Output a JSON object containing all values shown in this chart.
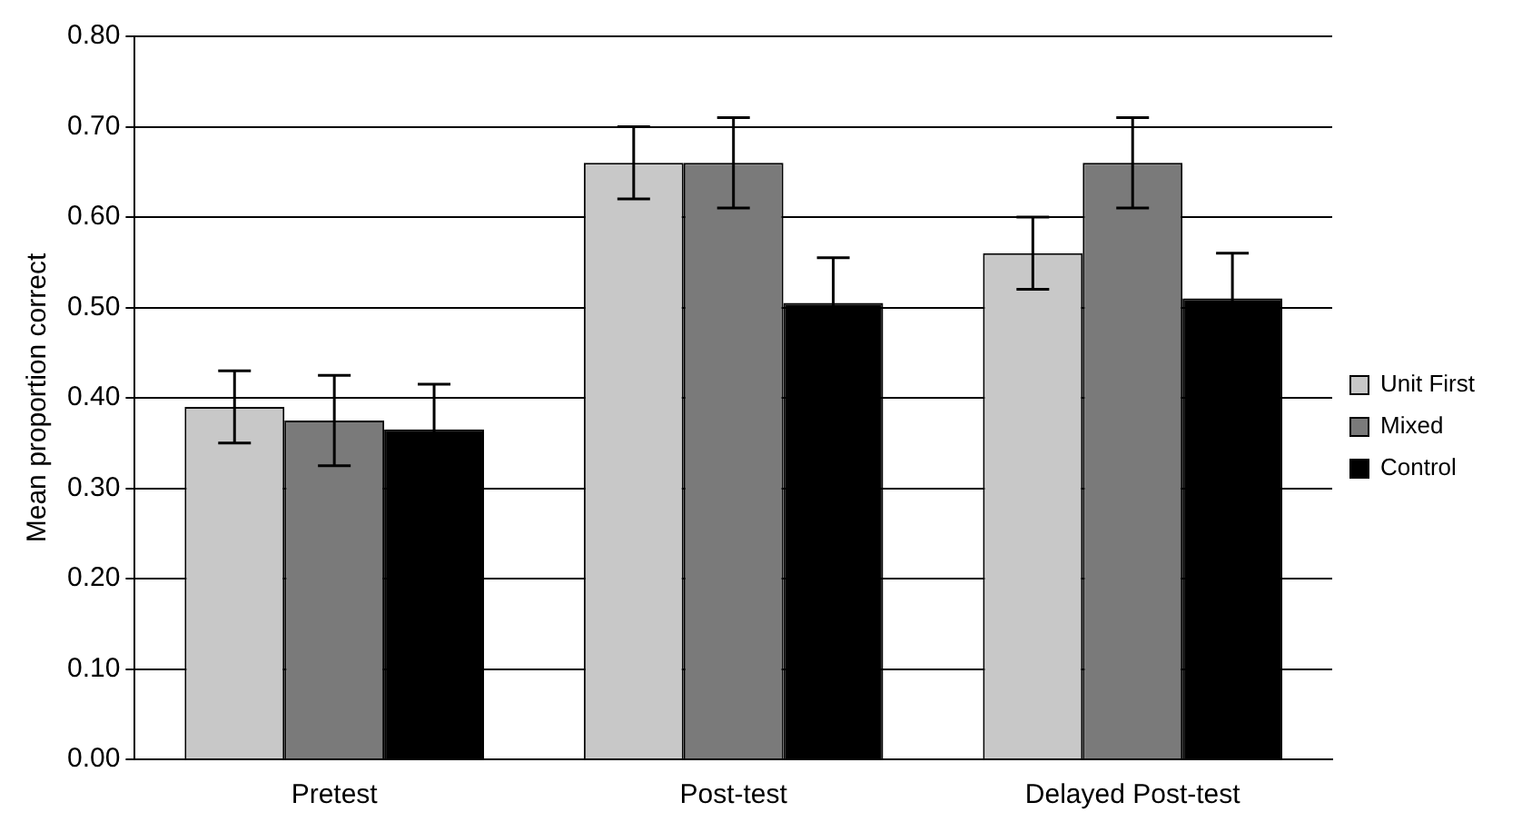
{
  "chart_data": {
    "type": "bar",
    "ylabel": "Mean proportion correct",
    "categories": [
      "Pretest",
      "Post-test",
      "Delayed Post-test"
    ],
    "series": [
      {
        "name": "Unit First",
        "color": "#c8c8c8",
        "values": [
          0.39,
          0.66,
          0.56
        ],
        "errors": [
          0.04,
          0.04,
          0.04
        ]
      },
      {
        "name": "Mixed",
        "color": "#7a7a7a",
        "values": [
          0.375,
          0.66,
          0.66
        ],
        "errors": [
          0.05,
          0.05,
          0.05
        ]
      },
      {
        "name": "Control",
        "color": "#000000",
        "values": [
          0.365,
          0.505,
          0.51
        ],
        "errors": [
          0.05,
          0.05,
          0.05
        ]
      }
    ],
    "ylim": [
      0,
      0.8
    ],
    "yticks": [
      {
        "value": 0,
        "label": "0.00"
      },
      {
        "value": 0.1,
        "label": "0.10"
      },
      {
        "value": 0.2,
        "label": "0.20"
      },
      {
        "value": 0.3,
        "label": "0.30"
      },
      {
        "value": 0.4,
        "label": "0.40"
      },
      {
        "value": 0.5,
        "label": "0.50"
      },
      {
        "value": 0.6,
        "label": "0.60"
      },
      {
        "value": 0.7,
        "label": "0.70"
      },
      {
        "value": 0.8,
        "label": "0.80"
      }
    ],
    "grid": "y",
    "legend": "right"
  }
}
